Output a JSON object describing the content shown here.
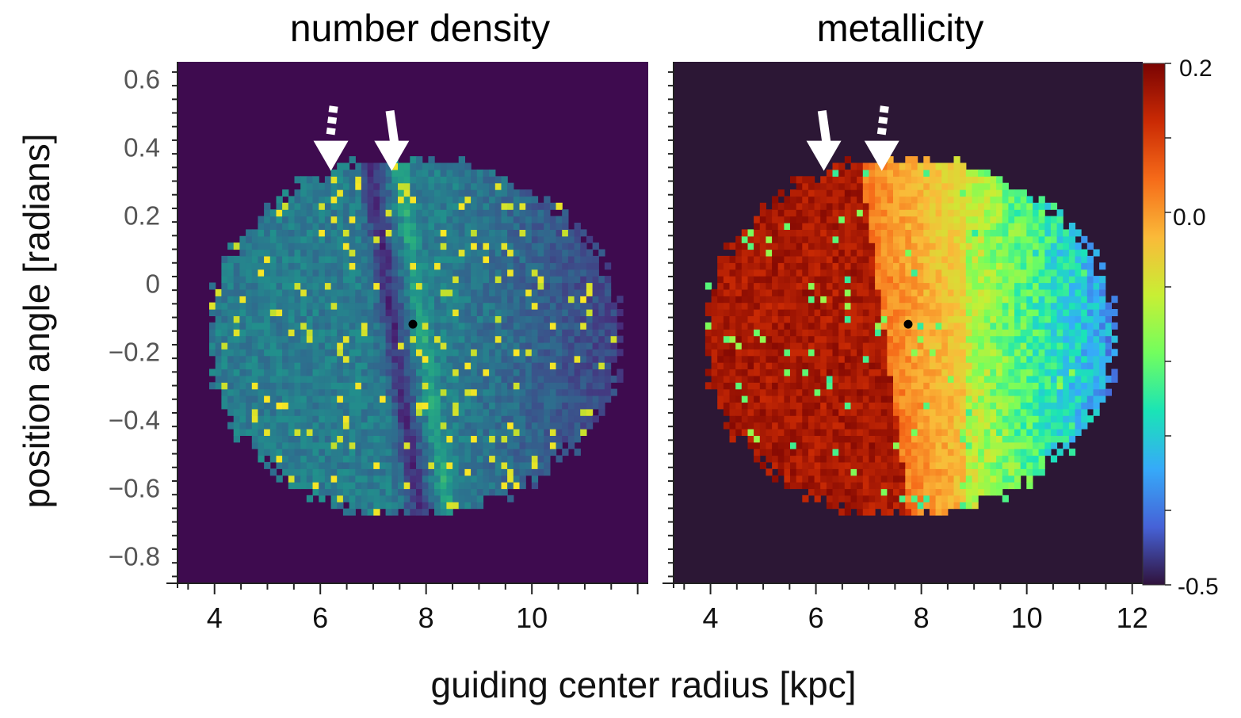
{
  "chart_data": [
    {
      "type": "heatmap",
      "title": "number density",
      "xlabel": "guiding center radius [kpc]",
      "ylabel": "position angle [radians]",
      "xlim": [
        3.3,
        12.2
      ],
      "ylim": [
        -0.88,
        0.65
      ],
      "x_ticks": [
        "4",
        "6",
        "8",
        "10"
      ],
      "y_ticks": [
        "0.6",
        "0.4",
        "0.2",
        "0",
        "−0.2",
        "−0.4",
        "−0.6",
        "−0.8"
      ],
      "background_color": "#3e0b4f",
      "marker": {
        "x": 7.75,
        "y": -0.12,
        "color": "#000000"
      },
      "arrows": [
        {
          "x": 6.2,
          "y": 0.33,
          "style": "dashed"
        },
        {
          "x": 7.35,
          "y": 0.33,
          "style": "solid"
        }
      ],
      "features": {
        "density_gap_x": 7.4,
        "density_ridge_x": 7.95,
        "data_extent_x": [
          3.9,
          11.7
        ],
        "data_extent_y": [
          -0.68,
          0.37
        ]
      }
    },
    {
      "type": "heatmap",
      "title": "metallicity",
      "xlabel": "guiding center radius [kpc]",
      "xlim": [
        3.3,
        12.2
      ],
      "ylim": [
        -0.88,
        0.65
      ],
      "x_ticks": [
        "4",
        "6",
        "8",
        "10",
        "12"
      ],
      "background_color": "#2c1735",
      "marker": {
        "x": 7.75,
        "y": -0.12,
        "color": "#000000"
      },
      "arrows": [
        {
          "x": 6.15,
          "y": 0.33,
          "style": "solid"
        },
        {
          "x": 7.25,
          "y": 0.33,
          "style": "dashed"
        }
      ],
      "features": {
        "metallicity_gradient": "high inside ~7.5 kpc, decreasing outward",
        "data_extent_x": [
          3.9,
          11.7
        ],
        "data_extent_y": [
          -0.68,
          0.37
        ]
      },
      "colorbar": {
        "min": -0.5,
        "max": 0.2,
        "labels": [
          "0.2",
          "0.0",
          "-0.5"
        ],
        "label_values": [
          0.2,
          0.0,
          -0.5
        ],
        "colormap": [
          "#30123b",
          "#4662d7",
          "#36aaf9",
          "#1ae4b6",
          "#72fe5e",
          "#c8ef34",
          "#faba39",
          "#f66b19",
          "#ca2a04",
          "#7a0403"
        ]
      }
    }
  ]
}
